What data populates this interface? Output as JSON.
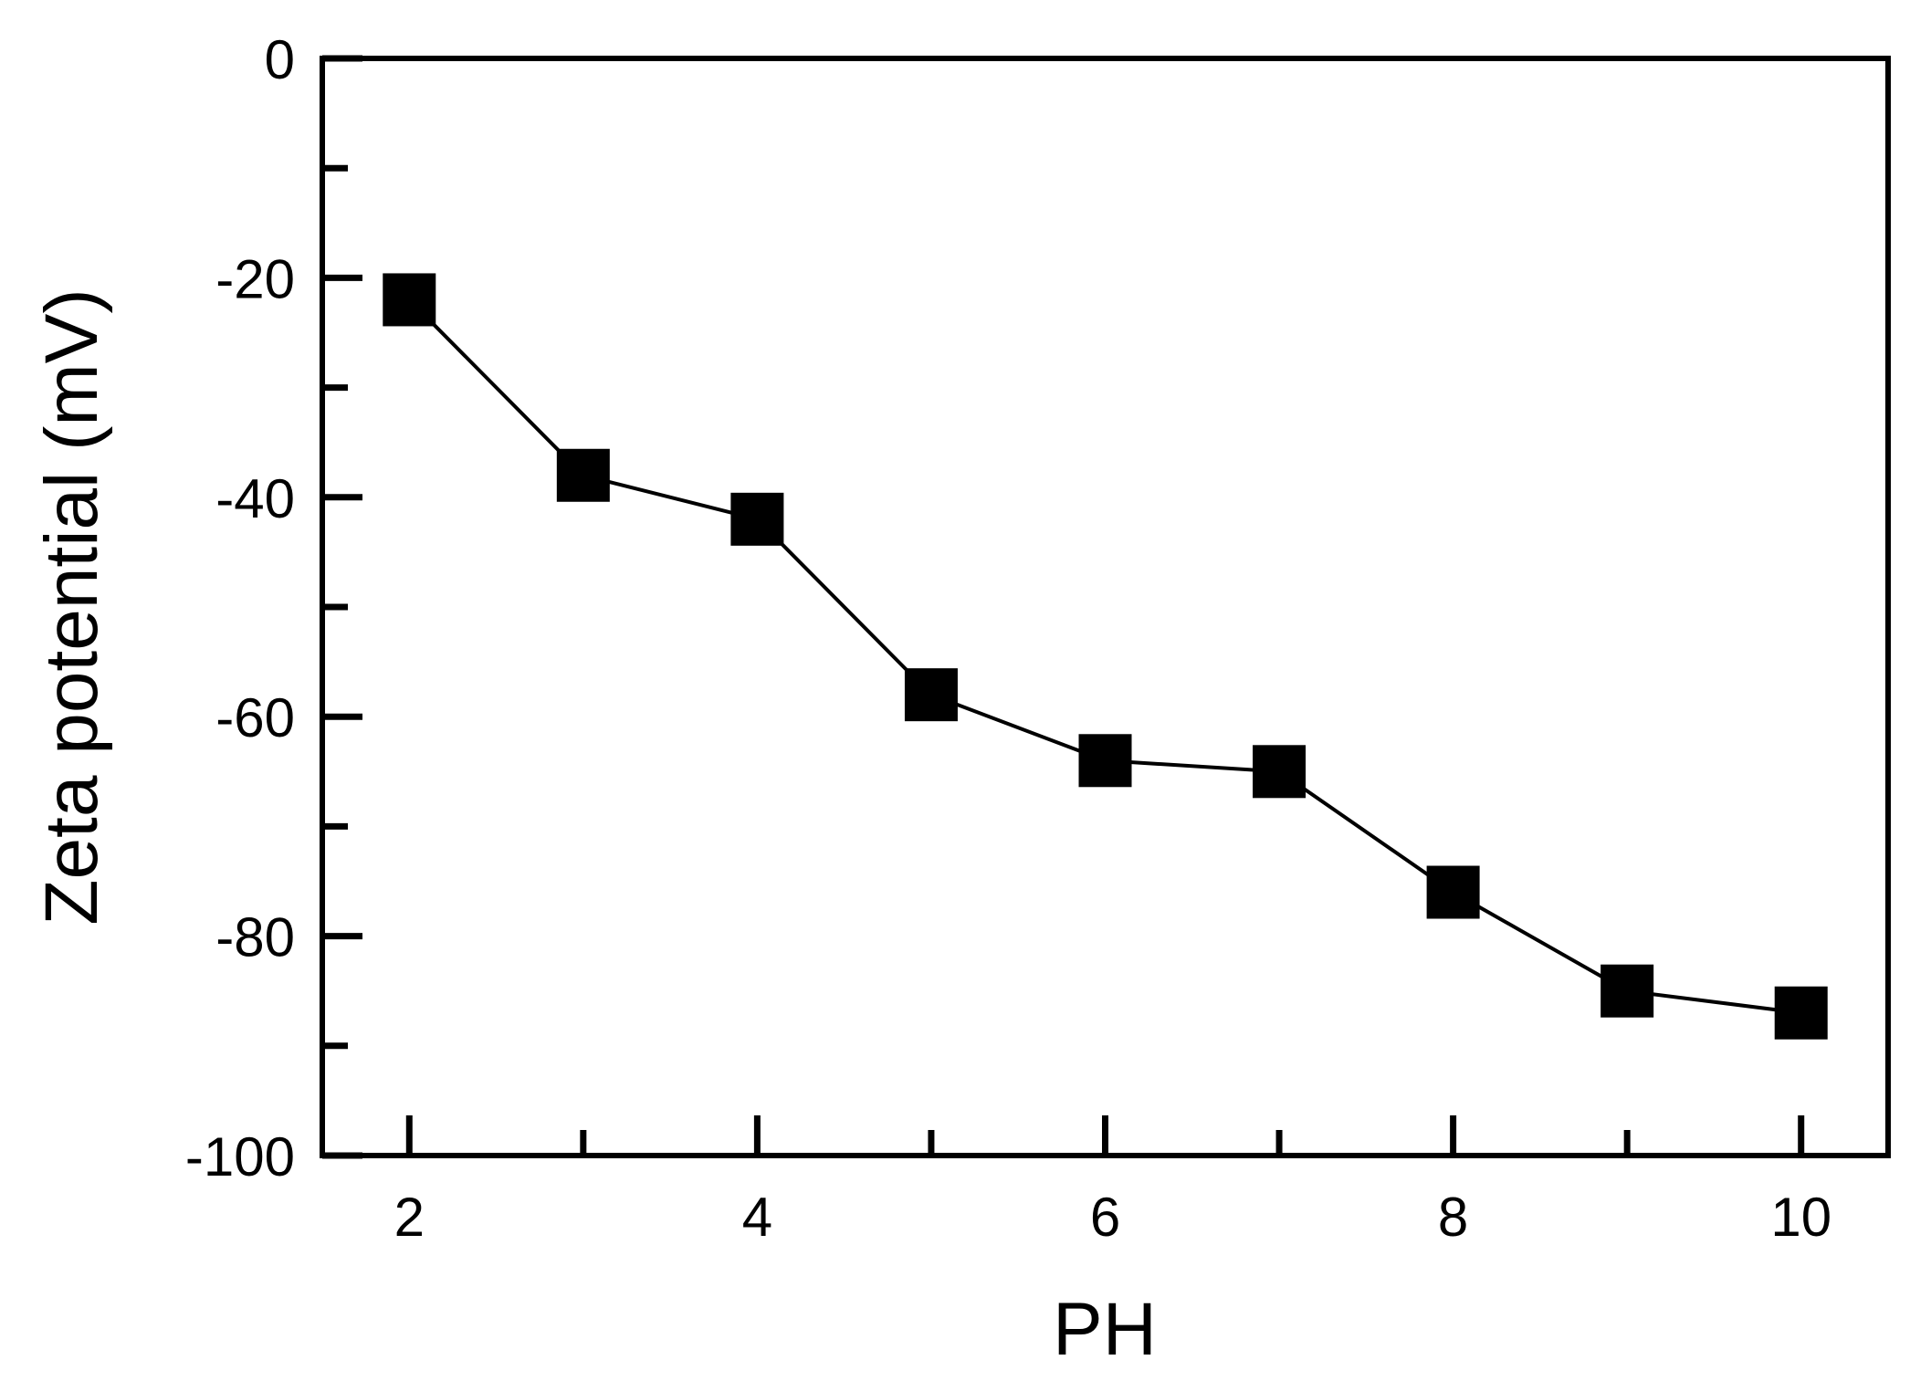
{
  "chart_data": {
    "type": "line",
    "title": "",
    "xlabel": "PH",
    "ylabel": "Zeta potential (mV)",
    "xlim": [
      1.5,
      10.5
    ],
    "ylim": [
      -100,
      0
    ],
    "x_ticks": [
      2,
      3,
      4,
      5,
      6,
      7,
      8,
      9,
      10
    ],
    "x_tick_labels": [
      {
        "value": 2,
        "label": "2"
      },
      {
        "value": 4,
        "label": "4"
      },
      {
        "value": 6,
        "label": "6"
      },
      {
        "value": 8,
        "label": "8"
      },
      {
        "value": 10,
        "label": "10"
      }
    ],
    "y_ticks": [
      0,
      -10,
      -20,
      -30,
      -40,
      -50,
      -60,
      -70,
      -80,
      -90,
      -100
    ],
    "y_tick_labels": [
      {
        "value": 0,
        "label": "0"
      },
      {
        "value": -20,
        "label": "-20"
      },
      {
        "value": -40,
        "label": "-40"
      },
      {
        "value": -60,
        "label": "-60"
      },
      {
        "value": -80,
        "label": "-80"
      },
      {
        "value": -100,
        "label": "-100"
      }
    ],
    "grid": false,
    "legend": "none",
    "marker": "square",
    "color": "#000000",
    "series": [
      {
        "x": [
          2,
          3,
          4,
          5,
          6,
          7,
          8,
          9,
          10
        ],
        "y": [
          -22,
          -38,
          -42,
          -58,
          -64,
          -65,
          -76,
          -85,
          -87
        ]
      }
    ]
  }
}
